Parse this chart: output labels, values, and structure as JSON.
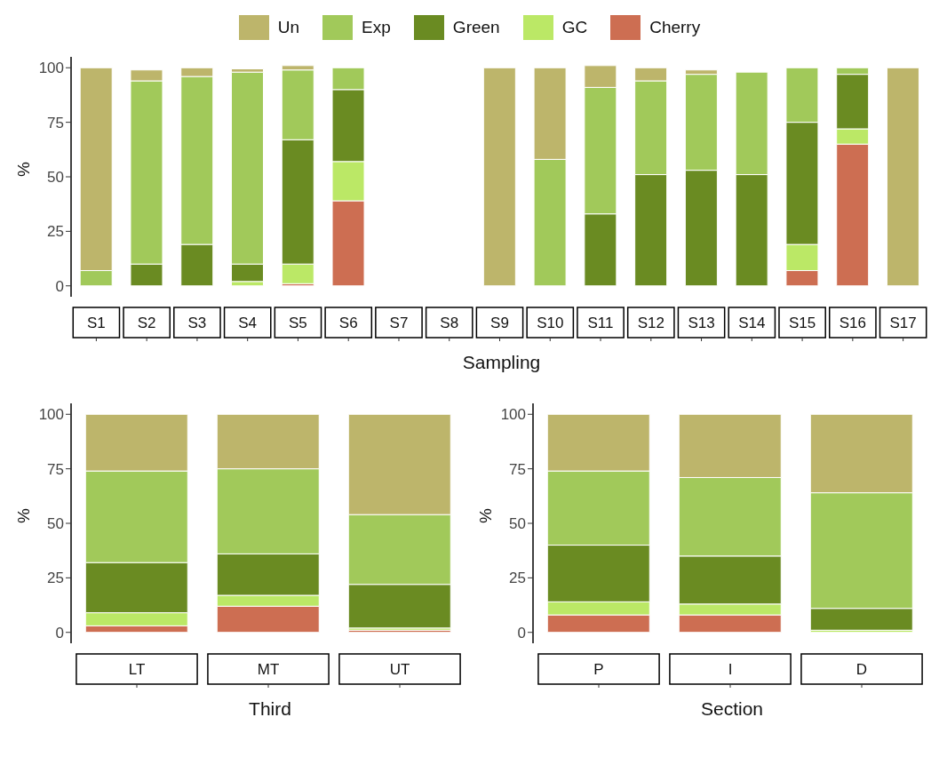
{
  "chart_data": [
    {
      "type": "bar",
      "stacked": true,
      "xlabel": "Sampling",
      "ylabel": "%",
      "legend": "top",
      "categories": [
        "S1",
        "S2",
        "S3",
        "S4",
        "S5",
        "S6",
        "S7",
        "S8",
        "S9",
        "S10",
        "S11",
        "S12",
        "S13",
        "S14",
        "S15",
        "S16",
        "S17"
      ],
      "ylim": [
        -5,
        105
      ],
      "yticks": [
        0,
        25,
        50,
        75,
        100
      ],
      "series": [
        {
          "name": "Cherry",
          "color": "#cd6e52",
          "values": [
            null,
            null,
            null,
            null,
            1,
            39,
            null,
            null,
            null,
            null,
            null,
            null,
            null,
            null,
            7,
            65,
            null
          ]
        },
        {
          "name": "GC",
          "color": "#bbe866",
          "values": [
            null,
            null,
            null,
            2,
            9,
            18,
            null,
            null,
            null,
            null,
            null,
            null,
            null,
            null,
            12,
            7,
            null
          ]
        },
        {
          "name": "Green",
          "color": "#6a8b22",
          "values": [
            null,
            10,
            19,
            8,
            57,
            33,
            null,
            null,
            null,
            null,
            33,
            51,
            53,
            51,
            56,
            25,
            null
          ]
        },
        {
          "name": "Exp",
          "color": "#a1c95a",
          "values": [
            7,
            84,
            77,
            88,
            32,
            10,
            null,
            null,
            null,
            58,
            58,
            43,
            44,
            47,
            25,
            3,
            null
          ]
        },
        {
          "name": "Un",
          "color": "#bdb56b",
          "values": [
            93,
            5,
            4,
            1.5,
            2,
            null,
            null,
            null,
            100,
            42,
            10,
            6,
            2,
            null,
            null,
            null,
            100
          ]
        }
      ]
    },
    {
      "type": "bar",
      "stacked": true,
      "xlabel": "Third",
      "ylabel": "%",
      "categories": [
        "LT",
        "MT",
        "UT"
      ],
      "ylim": [
        -5,
        105
      ],
      "yticks": [
        0,
        25,
        50,
        75,
        100
      ],
      "series": [
        {
          "color": "#cd6e52",
          "values": [
            3,
            12,
            1
          ]
        },
        {
          "color": "#bbe866",
          "values": [
            6,
            5,
            1
          ]
        },
        {
          "color": "#6a8b22",
          "values": [
            23,
            19,
            20
          ]
        },
        {
          "color": "#a1c95a",
          "values": [
            42,
            39,
            32
          ]
        },
        {
          "color": "#bdb56b",
          "values": [
            26,
            25,
            46
          ]
        }
      ]
    },
    {
      "type": "bar",
      "stacked": true,
      "xlabel": "Section",
      "ylabel": "%",
      "categories": [
        "P",
        "I",
        "D"
      ],
      "ylim": [
        -5,
        105
      ],
      "yticks": [
        0,
        25,
        50,
        75,
        100
      ],
      "series": [
        {
          "color": "#cd6e52",
          "values": [
            8,
            8,
            0
          ]
        },
        {
          "color": "#bbe866",
          "values": [
            6,
            5,
            1
          ]
        },
        {
          "color": "#6a8b22",
          "values": [
            26,
            22,
            10
          ]
        },
        {
          "color": "#a1c95a",
          "values": [
            34,
            36,
            53
          ]
        },
        {
          "color": "#bdb56b",
          "values": [
            26,
            29,
            36
          ]
        }
      ]
    }
  ]
}
